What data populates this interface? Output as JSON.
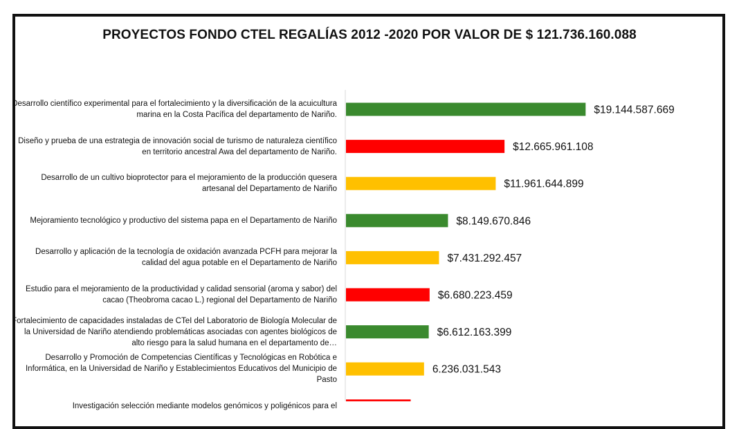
{
  "chart_data": {
    "type": "bar",
    "orientation": "horizontal",
    "title": "PROYECTOS FONDO CTEL REGALÍAS 2012 -2020 POR VALOR DE $ 121.736.160.088",
    "categories": [
      "Desarrollo científico experimental para el fortalecimiento y la diversificación de la acuicultura marina en la Costa Pacífica del departamento de   Nariño.",
      "Diseño y prueba de una estrategia de innovación social de turismo de naturaleza científico en territorio ancestral Awa del departamento de Nariño.",
      "Desarrollo de un cultivo bioprotector para el mejoramiento de la producción quesera artesanal del Departamento de Nariño",
      "Mejoramiento tecnológico y productivo del sistema papa en el Departamento de Nariño",
      "Desarrollo y aplicación de la tecnología de oxidación avanzada PCFH para mejorar la calidad del agua potable en el Departamento de Nariño",
      "Estudio para el mejoramiento de la productividad y calidad sensorial (aroma y sabor) del cacao (Theobroma cacao L.) regional del  Departamento de Nariño",
      "Fortalecimiento de capacidades instaladas de CTeI del Laboratorio de Biología Molecular de la Universidad de Nariño atendiendo problemáticas asociadas con agentes biológicos de alto riesgo para la salud humana en el departamento de…",
      "Desarrollo y Promoción de Competencias Científicas y Tecnológicas en Robótica e Informática, en la Universidad de Nariño y Establecimientos Educativos del Municipio de Pasto",
      "Investigación selección mediante modelos genómicos y poligénicos para el"
    ],
    "values": [
      19144587669,
      12665961108,
      11961644899,
      8149670846,
      7431292457,
      6680223459,
      6612163399,
      6236031543,
      5170000000
    ],
    "value_labels": [
      "$19.144.587.669",
      "$12.665.961.108",
      "$11.961.644.899",
      "$8.149.670.846",
      "$7.431.292.457",
      "$6.680.223.459",
      "$6.612.163.399",
      "6.236.031.543",
      ""
    ],
    "bar_colors": [
      "#3a8a2e",
      "#ff0000",
      "#ffc000",
      "#3a8a2e",
      "#ffc000",
      "#ff0000",
      "#3a8a2e",
      "#ffc000",
      "#ff0000"
    ],
    "xlim": [
      0,
      22000000000
    ],
    "grid": false,
    "legend": "none"
  }
}
